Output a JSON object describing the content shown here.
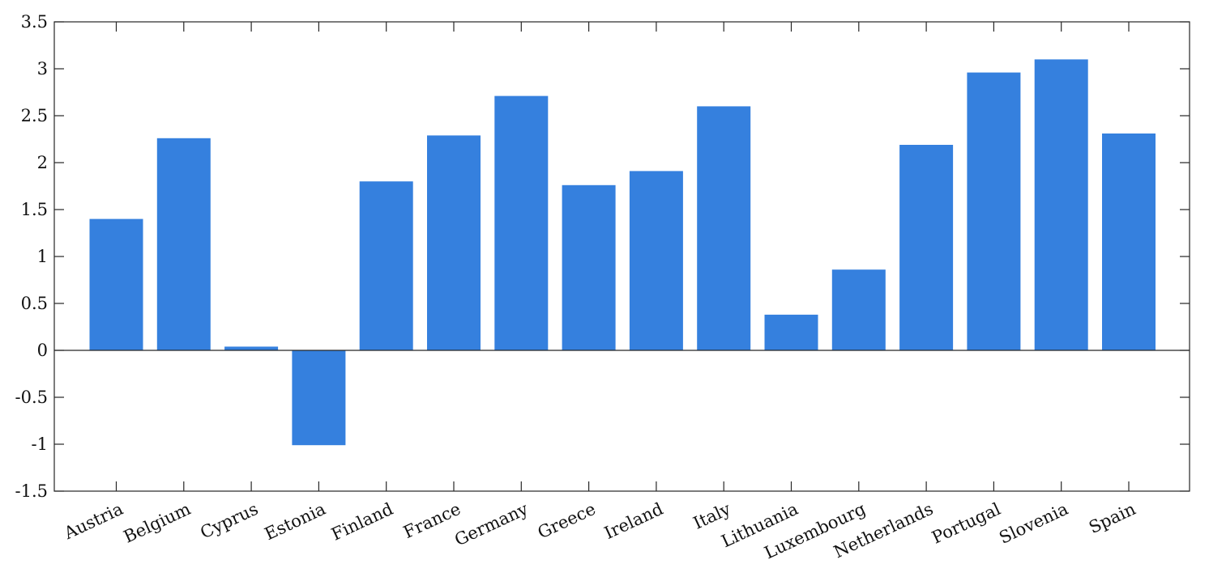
{
  "chart_data": {
    "type": "bar",
    "categories": [
      "Austria",
      "Belgium",
      "Cyprus",
      "Estonia",
      "Finland",
      "France",
      "Germany",
      "Greece",
      "Ireland",
      "Italy",
      "Lithuania",
      "Luxembourg",
      "Netherlands",
      "Portugal",
      "Slovenia",
      "Spain"
    ],
    "values": [
      1.4,
      2.26,
      0.04,
      -1.01,
      1.8,
      2.29,
      2.71,
      1.76,
      1.91,
      2.6,
      0.38,
      0.86,
      2.19,
      2.96,
      3.1,
      2.31
    ],
    "ylim": [
      -1.5,
      3.5
    ],
    "yticks": [
      3.5,
      3,
      2.5,
      2,
      1.5,
      1,
      0.5,
      0,
      -0.5,
      -1,
      -1.5
    ],
    "ytick_labels": [
      "3.5",
      "3",
      "2.5",
      "2",
      "1.5",
      "1",
      "0.5",
      "0",
      "-0.5",
      "-1",
      "-1.5"
    ],
    "bar_color": "#3580de",
    "grid": false,
    "legend": "none"
  }
}
